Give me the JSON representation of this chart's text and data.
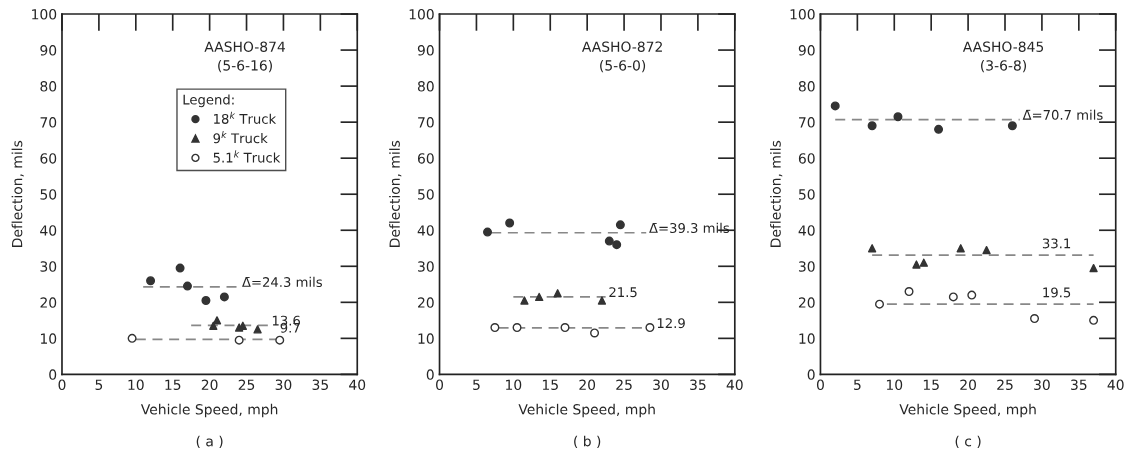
{
  "chart_data": [
    {
      "type": "scatter",
      "title": "AASHO-874\n(5-6-16)",
      "xlabel": "Vehicle Speed, mph",
      "ylabel": "Deflection, mils",
      "legend_title": "Legend:",
      "legend": "top right",
      "grid": false,
      "xlim": [
        0,
        40
      ],
      "xticks": [
        0,
        5,
        10,
        15,
        20,
        25,
        30,
        35,
        40
      ],
      "ylim": [
        0,
        100
      ],
      "yticks": [
        0,
        10,
        20,
        30,
        40,
        50,
        60,
        70,
        80,
        90,
        100
      ],
      "series": [
        {
          "name": "18$^{k}$ Truck",
          "color": "#333333",
          "marker": "circle",
          "x": [
            12,
            16,
            17,
            19.5,
            22
          ],
          "values": [
            26,
            29.5,
            24.5,
            20.5,
            21.5
          ]
        },
        {
          "name": "9$^{k}$ Truck",
          "color": "#333333",
          "marker": "triangle",
          "x": [
            20.5,
            21,
            24,
            24.5,
            26.5
          ],
          "values": [
            13.5,
            15,
            13,
            13.5,
            12.5
          ]
        },
        {
          "name": "5.1$^{k}$ Truck",
          "color": "#333333",
          "marker": "circle",
          "x": [
            9.5,
            24,
            29.5
          ],
          "values": [
            10,
            9.5,
            9.5
          ]
        },
        {
          "type": "line",
          "color": "#888888",
          "line_style": "dashed",
          "x": [
            11,
            24
          ],
          "values": [
            24.3,
            24.3
          ]
        },
        {
          "type": "line",
          "color": "#888888",
          "line_style": "dashed",
          "x": [
            17.5,
            28
          ],
          "values": [
            13.6,
            13.6
          ]
        },
        {
          "type": "line",
          "color": "#888888",
          "line_style": "dashed",
          "x": [
            10,
            29
          ],
          "values": [
            9.7,
            9.7
          ]
        }
      ],
      "annotations": [
        {
          "text": "Δ̄=24.3 mils",
          "x": 24,
          "y": 24.3
        },
        {
          "text": "13.6",
          "x": 28,
          "y": 13.6
        },
        {
          "text": "9.7",
          "x": 29.5,
          "y": 9.7
        },
        "( a )"
      ]
    },
    {
      "type": "scatter",
      "title": "AASHO-872\n(5-6-0)",
      "xlabel": "Vehicle Speed, mph",
      "ylabel": "Deflection, mils",
      "grid": false,
      "xlim": [
        0,
        40
      ],
      "xticks": [
        0,
        5,
        10,
        15,
        20,
        25,
        30,
        35,
        40
      ],
      "ylim": [
        0,
        100
      ],
      "yticks": [
        0,
        10,
        20,
        30,
        40,
        50,
        60,
        70,
        80,
        90,
        100
      ],
      "series": [
        {
          "color": "#333333",
          "marker": "circle",
          "x": [
            6.5,
            9.5,
            23,
            24,
            24.5
          ],
          "values": [
            39.5,
            42,
            37,
            36,
            41.5
          ]
        },
        {
          "color": "#333333",
          "marker": "triangle",
          "x": [
            11.5,
            13.5,
            16,
            22
          ],
          "values": [
            20.5,
            21.5,
            22.5,
            20.5
          ]
        },
        {
          "color": "#333333",
          "marker": "circle",
          "x": [
            7.5,
            10.5,
            17,
            21,
            28.5
          ],
          "values": [
            13,
            13,
            13,
            11.5,
            13
          ]
        },
        {
          "type": "line",
          "color": "#888888",
          "line_style": "dashed",
          "x": [
            7,
            28
          ],
          "values": [
            39.3,
            39.3
          ]
        },
        {
          "type": "line",
          "color": "#888888",
          "line_style": "dashed",
          "x": [
            10,
            22.5
          ],
          "values": [
            21.5,
            21.5
          ]
        },
        {
          "type": "line",
          "color": "#888888",
          "line_style": "dashed",
          "x": [
            8,
            29
          ],
          "values": [
            12.9,
            12.9
          ]
        }
      ],
      "annotations": [
        {
          "text": "Δ̄=39.3 mils",
          "x": 28,
          "y": 39.3
        },
        {
          "text": "21.5",
          "x": 22.5,
          "y": 21.5
        },
        {
          "text": "12.9",
          "x": 29,
          "y": 12.9
        },
        "( b )"
      ]
    },
    {
      "type": "scatter",
      "title": "AASHO-845\n(3-6-8)",
      "xlabel": "Vehicle Speed, mph",
      "ylabel": "Deflection, mils",
      "grid": false,
      "xlim": [
        0,
        40
      ],
      "xticks": [
        0,
        5,
        10,
        15,
        20,
        25,
        30,
        35,
        40
      ],
      "ylim": [
        0,
        100
      ],
      "yticks": [
        0,
        10,
        20,
        30,
        40,
        50,
        60,
        70,
        80,
        90,
        100
      ],
      "series": [
        {
          "color": "#333333",
          "marker": "circle",
          "x": [
            2,
            7,
            10.5,
            16,
            26
          ],
          "values": [
            74.5,
            69,
            71.5,
            68,
            69
          ]
        },
        {
          "color": "#333333",
          "marker": "triangle",
          "x": [
            7,
            13,
            14,
            19,
            22.5,
            37
          ],
          "values": [
            35,
            30.5,
            31,
            35,
            34.5,
            29.5
          ]
        },
        {
          "color": "#333333",
          "marker": "circle",
          "x": [
            8,
            12,
            18,
            20.5,
            29,
            37
          ],
          "values": [
            19.5,
            23,
            21.5,
            22,
            15.5,
            15
          ]
        },
        {
          "type": "line",
          "color": "#888888",
          "line_style": "dashed",
          "x": [
            2,
            27
          ],
          "values": [
            70.7,
            70.7
          ]
        },
        {
          "type": "line",
          "color": "#888888",
          "line_style": "dashed",
          "x": [
            7,
            37
          ],
          "values": [
            33.1,
            33.1
          ]
        },
        {
          "type": "line",
          "color": "#888888",
          "line_style": "dashed",
          "x": [
            9,
            37
          ],
          "values": [
            19.5,
            19.5
          ]
        }
      ],
      "annotations": [
        {
          "text": "Δ̄=70.7 mils",
          "x": 27,
          "y": 70.7
        },
        {
          "text": "33.1",
          "x": 30,
          "y": 33.1
        },
        {
          "text": "19.5",
          "x": 30,
          "y": 19.5
        },
        "( c )"
      ]
    }
  ]
}
